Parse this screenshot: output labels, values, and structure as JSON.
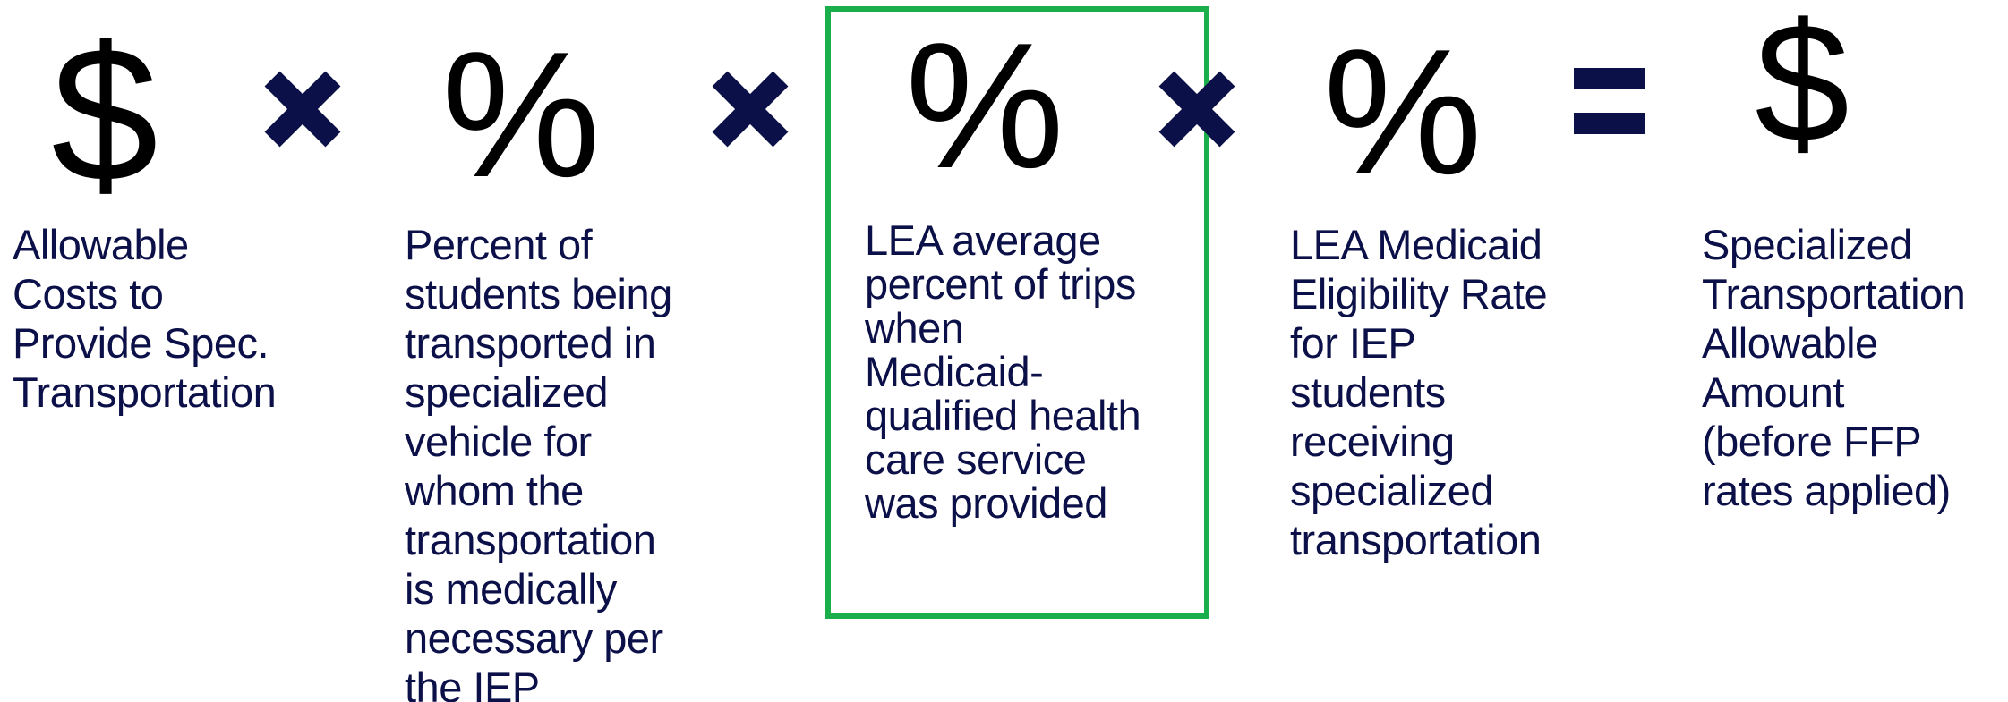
{
  "terms": [
    {
      "symbol": "$",
      "label": [
        "Allowable",
        "Costs to",
        "Provide Spec.",
        "Transportation"
      ]
    },
    {
      "symbol": "%",
      "label": [
        "Percent of",
        "students being",
        "transported in",
        "specialized",
        "vehicle for",
        "whom the",
        "transportation",
        "is medically",
        "necessary per",
        "the IEP"
      ]
    },
    {
      "symbol": "%",
      "label": [
        "LEA average",
        "percent of trips",
        "when",
        "Medicaid-",
        "qualified health",
        "care service",
        "was provided"
      ]
    },
    {
      "symbol": "%",
      "label": [
        "LEA Medicaid",
        "Eligibility Rate",
        "for IEP",
        "students",
        "receiving",
        "specialized",
        "transportation"
      ]
    },
    {
      "symbol": "$",
      "label": [
        "Specialized",
        "Transportation",
        "Allowable",
        "Amount",
        "(before FFP",
        "rates applied)"
      ]
    }
  ]
}
